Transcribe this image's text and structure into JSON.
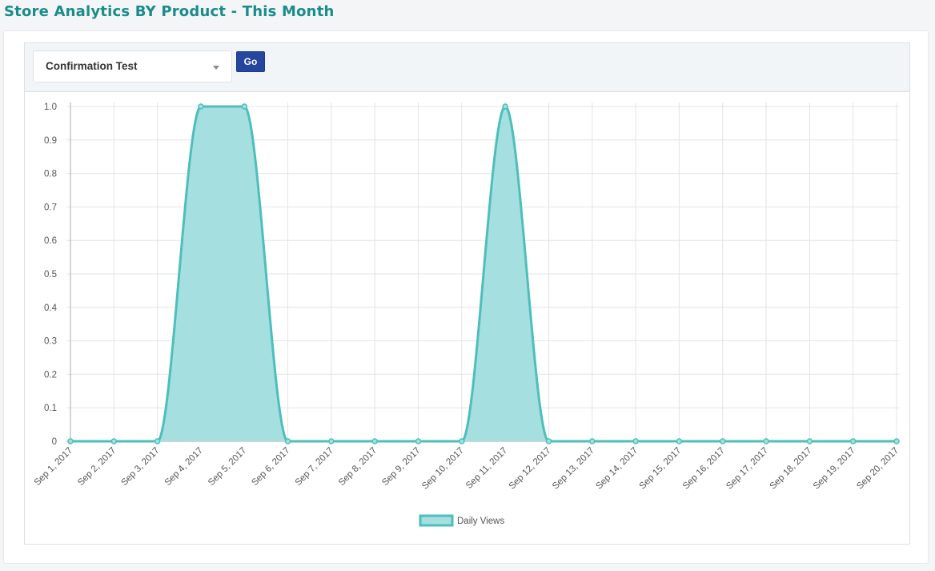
{
  "page": {
    "title": "Store Analytics BY Product - This Month"
  },
  "filter": {
    "product_selected": "Confirmation Test",
    "go_label": "Go"
  },
  "colors": {
    "title": "#1a8c8c",
    "series_line": "#4cbfbc",
    "series_fill": "#a6dfe0",
    "button": "#24469e"
  },
  "chart_data": {
    "type": "area",
    "x": [
      "Sep 1, 2017",
      "Sep 2, 2017",
      "Sep 3, 2017",
      "Sep 4, 2017",
      "Sep 5, 2017",
      "Sep 6, 2017",
      "Sep 7, 2017",
      "Sep 8, 2017",
      "Sep 9, 2017",
      "Sep 10, 2017",
      "Sep 11, 2017",
      "Sep 12, 2017",
      "Sep 13, 2017",
      "Sep 14, 2017",
      "Sep 15, 2017",
      "Sep 16, 2017",
      "Sep 17, 2017",
      "Sep 18, 2017",
      "Sep 19, 2017",
      "Sep 20, 2017"
    ],
    "series": [
      {
        "name": "Daily Views",
        "values": [
          0,
          0,
          0,
          1,
          1,
          0,
          0,
          0,
          0,
          0,
          1,
          0,
          0,
          0,
          0,
          0,
          0,
          0,
          0,
          0
        ]
      }
    ],
    "y_ticks": [
      "0",
      "0.1",
      "0.2",
      "0.3",
      "0.4",
      "0.5",
      "0.6",
      "0.7",
      "0.8",
      "0.9",
      "1.0"
    ],
    "ylim": [
      0,
      1
    ],
    "grid": true,
    "legend_position": "bottom-center",
    "curve": "smooth"
  }
}
